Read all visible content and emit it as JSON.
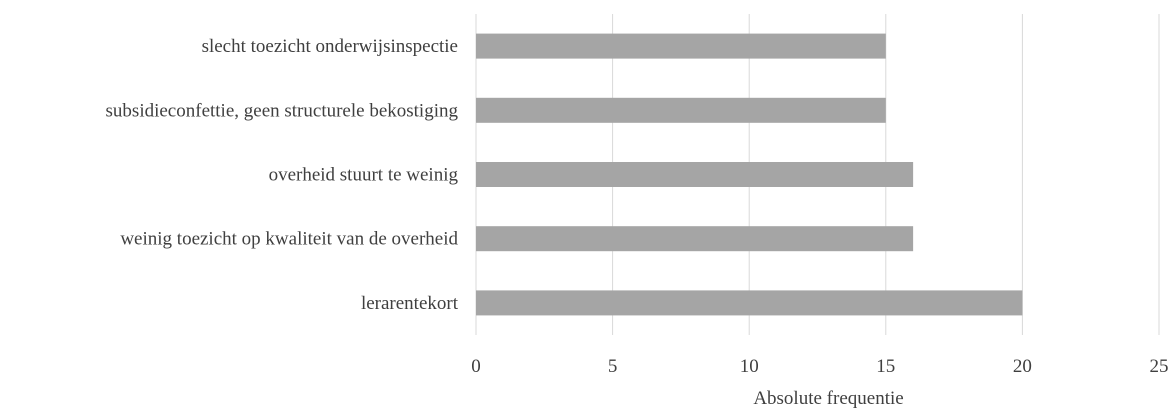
{
  "chart_data": {
    "type": "bar",
    "orientation": "horizontal",
    "categories": [
      "slecht toezicht onderwijsinspectie",
      "subsidieconfettie, geen structurele bekostiging",
      "overheid stuurt te weinig",
      "weinig toezicht op kwaliteit van de overheid",
      "lerarentekort"
    ],
    "values": [
      15,
      15,
      16,
      16,
      20
    ],
    "xlabel": "Absolute frequentie",
    "ylabel": "",
    "title": "",
    "xlim": [
      0,
      25
    ],
    "xticks": [
      "0",
      "5",
      "10",
      "15",
      "20",
      "25"
    ],
    "grid": "vertical",
    "legend": "none",
    "bar_color": "#a5a5a5",
    "grid_color": "#d9d9d9",
    "text_color": "#3f3f3f"
  }
}
